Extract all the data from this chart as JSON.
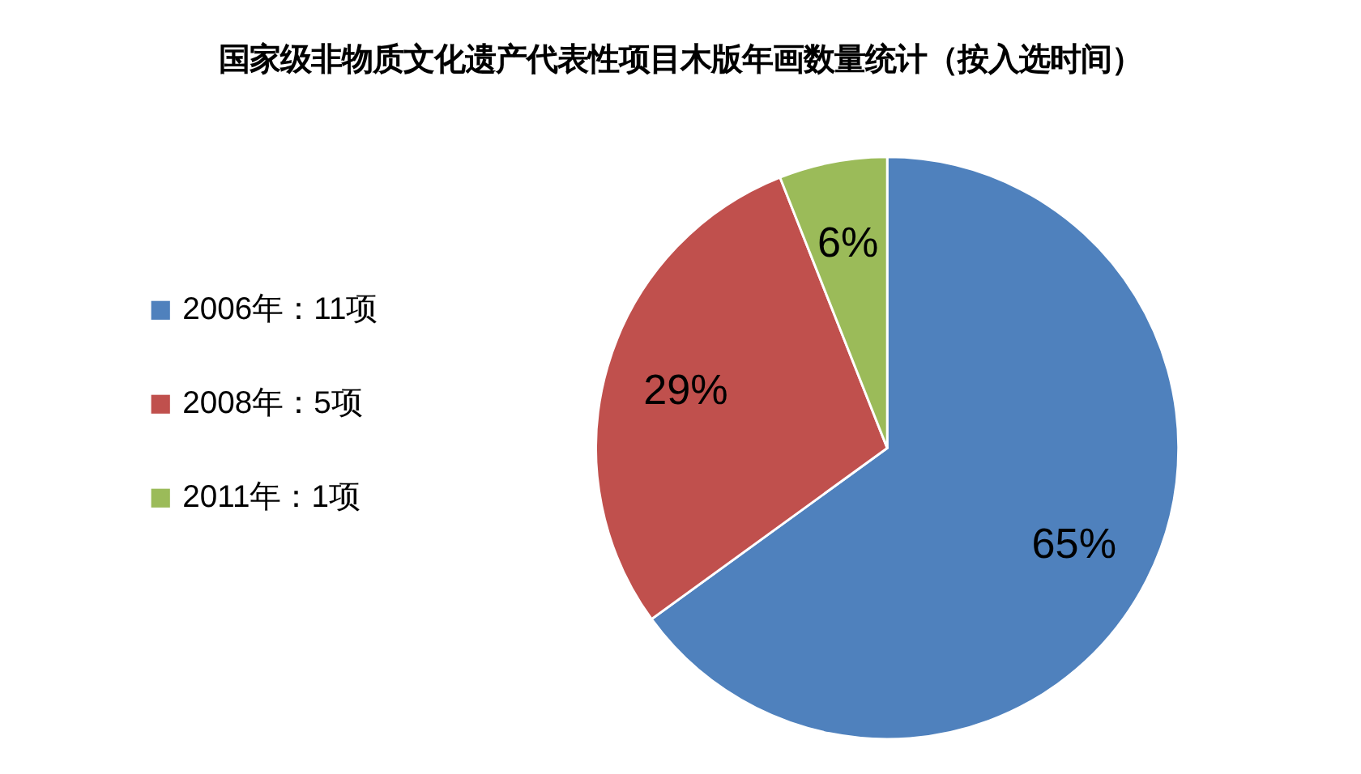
{
  "chart_data": {
    "type": "pie",
    "title": "国家级非物质文化遗产代表性项目木版年画数量统计（按入选时间）",
    "categories": [
      "2006年：11项",
      "2008年：5项",
      "2011年：1项"
    ],
    "values": [
      65,
      29,
      6
    ],
    "value_labels": [
      "65%",
      "29%",
      "6%"
    ],
    "colors": [
      "#4f81bd",
      "#c0504d",
      "#9bbb59"
    ],
    "legend": "left"
  }
}
